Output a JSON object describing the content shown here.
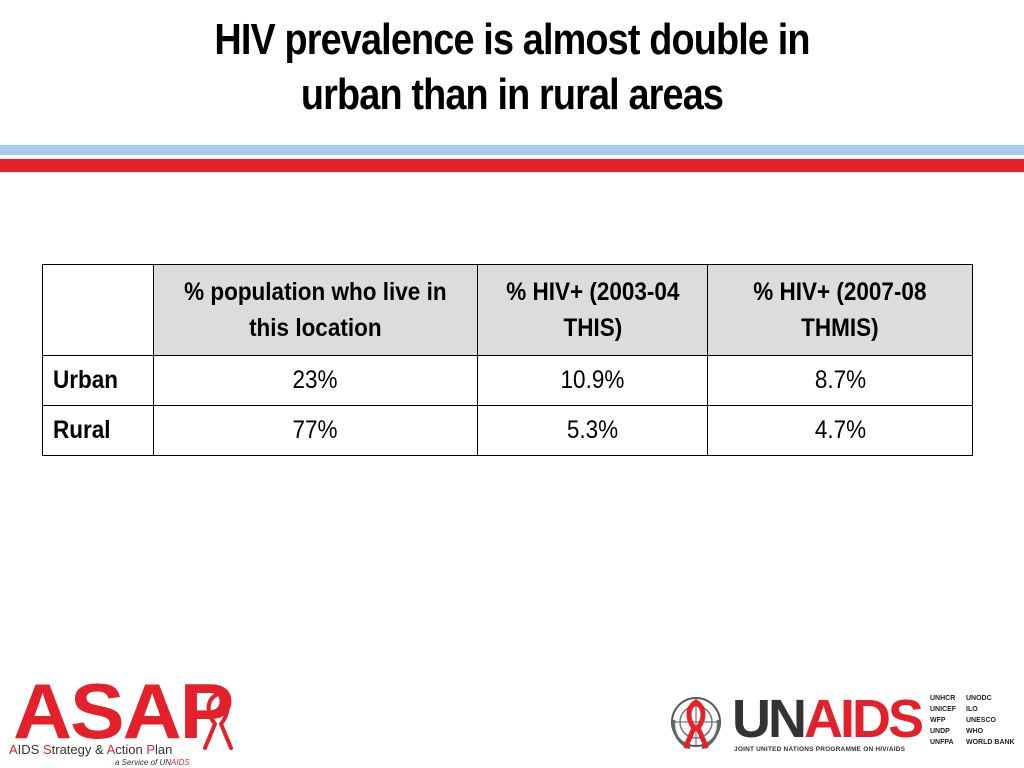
{
  "title": {
    "line1": "HIV prevalence is almost double in",
    "line2": "urban than in rural areas"
  },
  "colors": {
    "accent_red": "#e4212b",
    "accent_blue": "#a6cbf0",
    "header_fill": "#dcdcdc"
  },
  "table": {
    "headers": [
      "",
      "% population who live in this location",
      "% HIV+ (2003-04 THIS)",
      "% HIV+ (2007-08 THMIS)"
    ],
    "rows": [
      {
        "label": "Urban",
        "values": [
          "23%",
          "10.9%",
          "8.7%"
        ]
      },
      {
        "label": "Rural",
        "values": [
          "77%",
          "5.3%",
          "4.7%"
        ]
      }
    ]
  },
  "logos": {
    "asap": {
      "word": "ASAP",
      "tag_parts": [
        "A",
        "IDS ",
        "S",
        "trategy & ",
        "A",
        "ction ",
        "P",
        "lan"
      ],
      "service_prefix": "a Service of UN",
      "service_suffix": "AIDS"
    },
    "unaids": {
      "word_un": "UN",
      "word_aids": "AIDS",
      "subtitle": "JOINT UNITED NATIONS PROGRAMME ON HIV/AIDS",
      "emblem_icon": "un-emblem-red-ribbon-icon",
      "cosponsors": [
        "UNHCR",
        "UNODC",
        "UNICEF",
        "ILO",
        "WFP",
        "UNESCO",
        "UNDP",
        "WHO",
        "UNFPA",
        "WORLD BANK"
      ]
    }
  }
}
